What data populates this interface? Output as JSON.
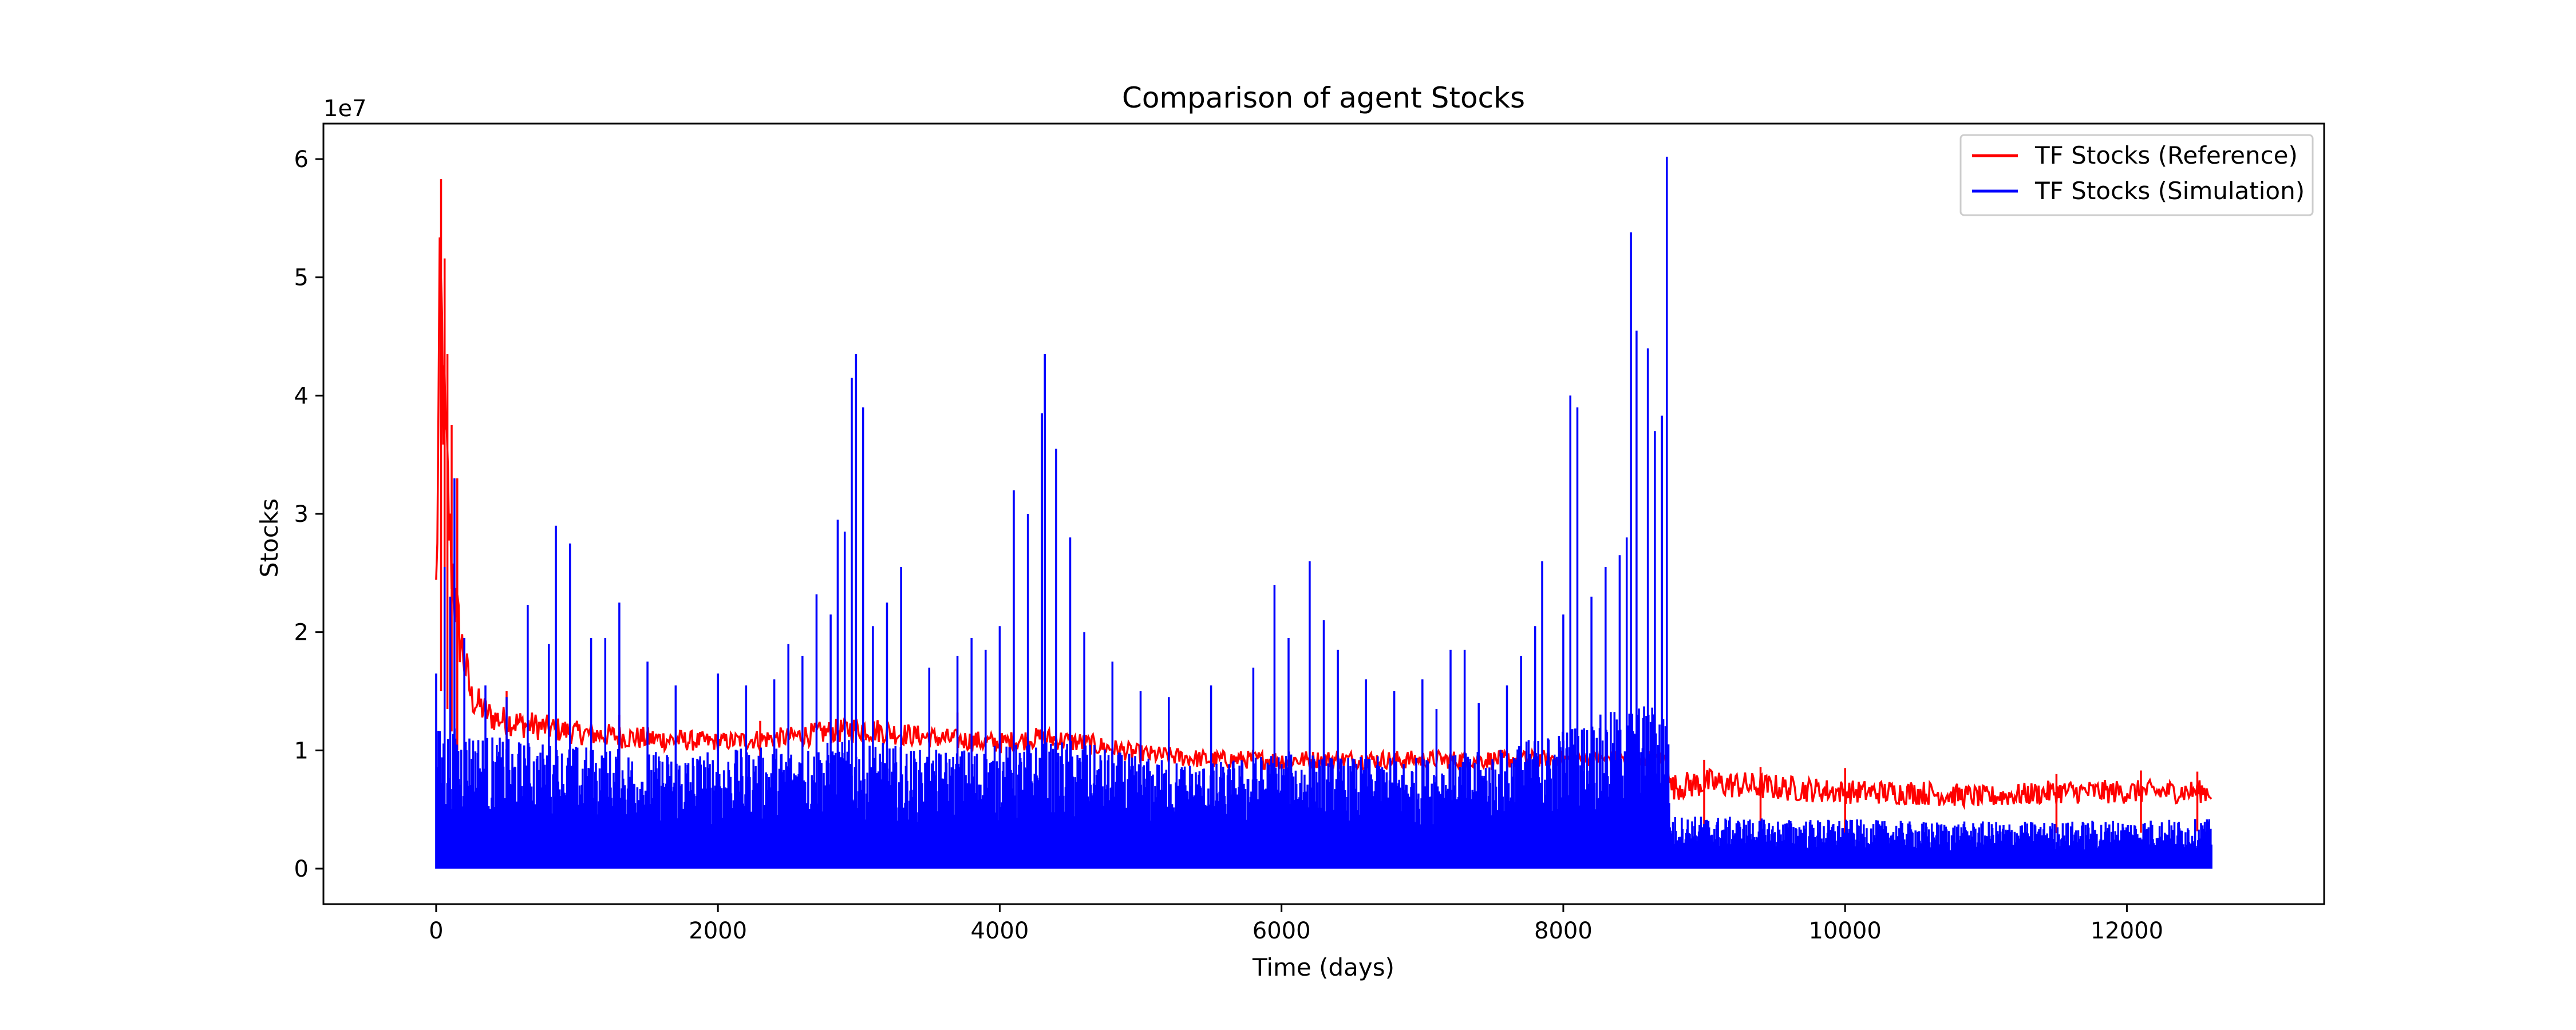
{
  "chart_data": {
    "type": "line",
    "title": "Comparison of agent Stocks",
    "xlabel": "Time (days)",
    "ylabel": "Stocks",
    "y_multiplier_label": "1e7",
    "xlim": [
      -800,
      13400
    ],
    "ylim": [
      -3,
      63
    ],
    "x_ticks": [
      0,
      2000,
      4000,
      6000,
      8000,
      10000,
      12000
    ],
    "x_tick_labels": [
      "0",
      "2000",
      "4000",
      "6000",
      "8000",
      "10000",
      "12000"
    ],
    "y_ticks": [
      0,
      1,
      2,
      3,
      4,
      5,
      6
    ],
    "y_tick_labels": [
      "0",
      "1",
      "2",
      "3",
      "4",
      "5",
      "6"
    ],
    "y_tick_unit_multiplier": 10,
    "grid": false,
    "legend_position": "top-right",
    "series": [
      {
        "name": "TF Stocks (Reference)",
        "color": "#ff0000",
        "envelope_x": [
          0,
          30,
          60,
          100,
          150,
          250,
          400,
          600,
          1000,
          1500,
          2000,
          2500,
          3000,
          3500,
          4000,
          4300,
          4600,
          5000,
          5500,
          6000,
          6500,
          7000,
          7500,
          8000,
          8500,
          8740,
          8760,
          9000,
          9500,
          10000,
          10500,
          11000,
          11500,
          12000,
          12600
        ],
        "envelope_upper": [
          28,
          58.3,
          43.5,
          32,
          24,
          16,
          14,
          13.5,
          12.5,
          12,
          11.5,
          12,
          13,
          12,
          11.5,
          12,
          11.5,
          10.5,
          10,
          10,
          10,
          10,
          10,
          10,
          10,
          10,
          8,
          8.5,
          8,
          7.5,
          7.5,
          7,
          7.5,
          7.5,
          7.5
        ],
        "envelope_lower": [
          5,
          15,
          15,
          12,
          10,
          9,
          8.5,
          8,
          8,
          7.5,
          8,
          8,
          8,
          8,
          7.5,
          8,
          7.5,
          7,
          6.5,
          6.5,
          6.5,
          6.5,
          6.5,
          7,
          7,
          7,
          3,
          3,
          3,
          3,
          2.8,
          2.8,
          3,
          3,
          3.2
        ],
        "extremes": [
          [
            35,
            58.3
          ],
          [
            60,
            51.6
          ],
          [
            80,
            43.5
          ],
          [
            110,
            37.5
          ],
          [
            150,
            33
          ],
          [
            500,
            15
          ],
          [
            1300,
            13
          ],
          [
            2300,
            12.5
          ],
          [
            3700,
            13.2
          ],
          [
            5200,
            11.8
          ],
          [
            9000,
            9.2
          ],
          [
            9400,
            8.6
          ],
          [
            10000,
            8.5
          ],
          [
            11500,
            8
          ],
          [
            12100,
            8.3
          ],
          [
            12500,
            8.2
          ]
        ]
      },
      {
        "name": "TF Stocks (Simulation)",
        "color": "#0000ff",
        "peaks": [
          [
            0,
            16.5
          ],
          [
            60,
            25.5
          ],
          [
            100,
            23
          ],
          [
            130,
            33
          ],
          [
            200,
            19.5
          ],
          [
            350,
            15.5
          ],
          [
            500,
            14.5
          ],
          [
            650,
            22.3
          ],
          [
            800,
            19
          ],
          [
            850,
            29
          ],
          [
            950,
            27.5
          ],
          [
            1100,
            19.5
          ],
          [
            1200,
            19.5
          ],
          [
            1300,
            22.5
          ],
          [
            1500,
            17.5
          ],
          [
            1700,
            15.5
          ],
          [
            2000,
            16.5
          ],
          [
            2200,
            15.5
          ],
          [
            2400,
            16
          ],
          [
            2500,
            19
          ],
          [
            2600,
            18
          ],
          [
            2700,
            23.2
          ],
          [
            2800,
            21.5
          ],
          [
            2850,
            29.5
          ],
          [
            2900,
            28.5
          ],
          [
            2950,
            41.5
          ],
          [
            2980,
            43.5
          ],
          [
            3030,
            39
          ],
          [
            3100,
            20.5
          ],
          [
            3200,
            22.5
          ],
          [
            3300,
            25.5
          ],
          [
            3500,
            17
          ],
          [
            3700,
            18
          ],
          [
            3800,
            19.5
          ],
          [
            3900,
            18.5
          ],
          [
            4000,
            20.5
          ],
          [
            4100,
            32
          ],
          [
            4200,
            30
          ],
          [
            4300,
            38.5
          ],
          [
            4320,
            43.5
          ],
          [
            4400,
            35.5
          ],
          [
            4500,
            28
          ],
          [
            4600,
            20
          ],
          [
            4800,
            17.5
          ],
          [
            5000,
            15
          ],
          [
            5200,
            14.5
          ],
          [
            5500,
            15.5
          ],
          [
            5800,
            17
          ],
          [
            5950,
            24
          ],
          [
            6050,
            19.5
          ],
          [
            6200,
            26
          ],
          [
            6300,
            21
          ],
          [
            6400,
            18.5
          ],
          [
            6600,
            16
          ],
          [
            6800,
            15
          ],
          [
            7000,
            16
          ],
          [
            7100,
            13.5
          ],
          [
            7200,
            18.5
          ],
          [
            7300,
            18.5
          ],
          [
            7400,
            14
          ],
          [
            7600,
            15.5
          ],
          [
            7700,
            18
          ],
          [
            7800,
            20.5
          ],
          [
            7850,
            26
          ],
          [
            8000,
            21.5
          ],
          [
            8050,
            40
          ],
          [
            8100,
            39
          ],
          [
            8200,
            23
          ],
          [
            8300,
            25.5
          ],
          [
            8400,
            26.5
          ],
          [
            8450,
            28
          ],
          [
            8480,
            53.8
          ],
          [
            8520,
            45.5
          ],
          [
            8600,
            44
          ],
          [
            8650,
            37
          ],
          [
            8700,
            38.3
          ],
          [
            8735,
            60.2
          ]
        ],
        "dense_upper_x": [
          0,
          200,
          500,
          1000,
          1500,
          2000,
          2500,
          3000,
          3500,
          4000,
          4500,
          5000,
          5500,
          6000,
          6500,
          7000,
          7500,
          8000,
          8500,
          8740,
          8760,
          9000,
          9500,
          10000,
          10500,
          11000,
          11500,
          12000,
          12600
        ],
        "dense_upper_y": [
          12,
          12,
          11,
          10.5,
          10,
          10,
          10.5,
          11,
          10,
          10.5,
          11,
          9.5,
          9,
          10,
          9.5,
          9.5,
          10,
          12,
          14,
          14,
          4.5,
          4.5,
          4.2,
          4.2,
          4,
          4,
          4,
          4.2,
          4.2
        ]
      }
    ]
  }
}
